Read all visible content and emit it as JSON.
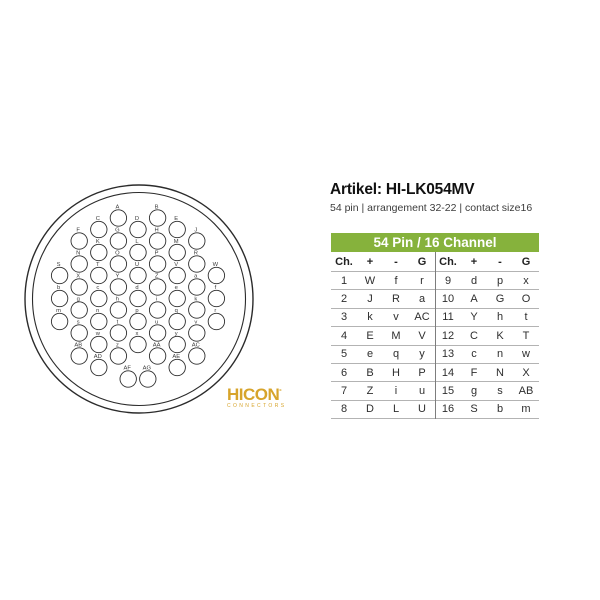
{
  "artikel": {
    "title": "Artikel: HI-LK054MV",
    "subtitle": "54 pin | arrangement 32-22 | contact size16"
  },
  "logo": {
    "name": "HICON",
    "mark": "°",
    "tagline": "CONNECTORS",
    "color": "#D7A42B"
  },
  "table": {
    "title": "54 Pin / 16 Channel",
    "header_bg": "#86B23C",
    "columns": [
      "Ch.",
      "+",
      "-",
      "G"
    ],
    "left_rows": [
      [
        "1",
        "W",
        "f",
        "r"
      ],
      [
        "2",
        "J",
        "R",
        "a"
      ],
      [
        "3",
        "k",
        "v",
        "AC"
      ],
      [
        "4",
        "E",
        "M",
        "V"
      ],
      [
        "5",
        "e",
        "q",
        "y"
      ],
      [
        "6",
        "B",
        "H",
        "P"
      ],
      [
        "7",
        "Z",
        "i",
        "u"
      ],
      [
        "8",
        "D",
        "L",
        "U"
      ]
    ],
    "right_rows": [
      [
        "9",
        "d",
        "p",
        "x"
      ],
      [
        "10",
        "A",
        "G",
        "O"
      ],
      [
        "11",
        "Y",
        "h",
        "t"
      ],
      [
        "12",
        "C",
        "K",
        "T"
      ],
      [
        "13",
        "c",
        "n",
        "w"
      ],
      [
        "14",
        "F",
        "N",
        "X"
      ],
      [
        "15",
        "g",
        "s",
        "AB"
      ],
      [
        "16",
        "S",
        "b",
        "m"
      ]
    ]
  },
  "connector": {
    "pins": [
      {
        "label": "A",
        "col": 4,
        "row": 1
      },
      {
        "label": "B",
        "col": 6,
        "row": 1
      },
      {
        "label": "C",
        "col": 3,
        "row": 2
      },
      {
        "label": "D",
        "col": 5,
        "row": 2
      },
      {
        "label": "E",
        "col": 7,
        "row": 2
      },
      {
        "label": "F",
        "col": 2,
        "row": 3
      },
      {
        "label": "G",
        "col": 4,
        "row": 3
      },
      {
        "label": "H",
        "col": 6,
        "row": 3
      },
      {
        "label": "J",
        "col": 8,
        "row": 3
      },
      {
        "label": "K",
        "col": 3,
        "row": 4
      },
      {
        "label": "L",
        "col": 5,
        "row": 4
      },
      {
        "label": "M",
        "col": 7,
        "row": 4
      },
      {
        "label": "N",
        "col": 2,
        "row": 5
      },
      {
        "label": "O",
        "col": 4,
        "row": 5
      },
      {
        "label": "P",
        "col": 6,
        "row": 5
      },
      {
        "label": "R",
        "col": 8,
        "row": 5
      },
      {
        "label": "S",
        "col": 1,
        "row": 6
      },
      {
        "label": "T",
        "col": 3,
        "row": 6
      },
      {
        "label": "U",
        "col": 5,
        "row": 6
      },
      {
        "label": "V",
        "col": 7,
        "row": 6
      },
      {
        "label": "W",
        "col": 9,
        "row": 6
      },
      {
        "label": "X",
        "col": 2,
        "row": 7
      },
      {
        "label": "Y",
        "col": 4,
        "row": 7
      },
      {
        "label": "Z",
        "col": 6,
        "row": 7
      },
      {
        "label": "a",
        "col": 8,
        "row": 7
      },
      {
        "label": "b",
        "col": 1,
        "row": 8
      },
      {
        "label": "c",
        "col": 3,
        "row": 8
      },
      {
        "label": "d",
        "col": 5,
        "row": 8
      },
      {
        "label": "e",
        "col": 7,
        "row": 8
      },
      {
        "label": "f",
        "col": 9,
        "row": 8
      },
      {
        "label": "g",
        "col": 2,
        "row": 9
      },
      {
        "label": "h",
        "col": 4,
        "row": 9
      },
      {
        "label": "i",
        "col": 6,
        "row": 9
      },
      {
        "label": "k",
        "col": 8,
        "row": 9
      },
      {
        "label": "m",
        "col": 1,
        "row": 10
      },
      {
        "label": "n",
        "col": 3,
        "row": 10
      },
      {
        "label": "p",
        "col": 5,
        "row": 10
      },
      {
        "label": "q",
        "col": 7,
        "row": 10
      },
      {
        "label": "r",
        "col": 9,
        "row": 10
      },
      {
        "label": "s",
        "col": 2,
        "row": 11
      },
      {
        "label": "t",
        "col": 4,
        "row": 11
      },
      {
        "label": "u",
        "col": 6,
        "row": 11
      },
      {
        "label": "v",
        "col": 8,
        "row": 11
      },
      {
        "label": "w",
        "col": 3,
        "row": 12
      },
      {
        "label": "x",
        "col": 5,
        "row": 12
      },
      {
        "label": "y",
        "col": 7,
        "row": 12
      },
      {
        "label": "AB",
        "col": 2,
        "row": 13
      },
      {
        "label": "z",
        "col": 4,
        "row": 13
      },
      {
        "label": "AA",
        "col": 6,
        "row": 13
      },
      {
        "label": "AC",
        "col": 8,
        "row": 13
      },
      {
        "label": "AD",
        "col": 3,
        "row": 14
      },
      {
        "label": "AE",
        "col": 7,
        "row": 14
      },
      {
        "label": "AF",
        "col": 4.5,
        "row": 15
      },
      {
        "label": "AG",
        "col": 5.5,
        "row": 15
      }
    ]
  }
}
